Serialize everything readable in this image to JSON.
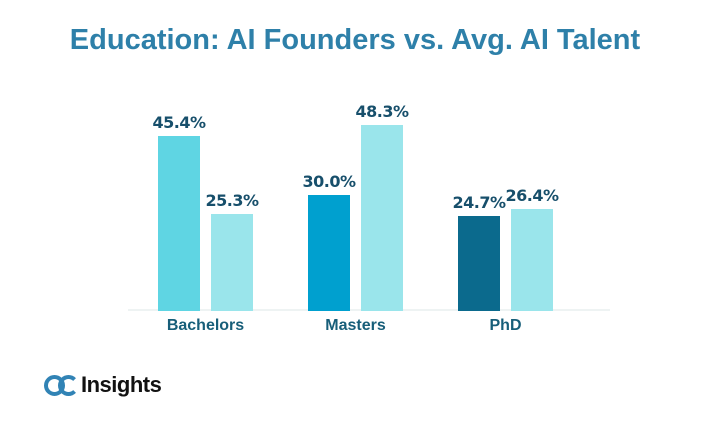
{
  "logo": {
    "mark": "OC",
    "text": "Insights"
  },
  "colors": {
    "title": "#2E80A9",
    "value_label": "#174F6B",
    "category_label": "#175E79",
    "axis_line": "#EEF3F3",
    "logo_blue": "#3183B5",
    "logo_text": "#121212"
  },
  "chart_data": {
    "type": "bar",
    "title": "Education: AI Founders vs. Avg. AI Talent",
    "categories": [
      "Bachelors",
      "Masters",
      "PhD"
    ],
    "series": [
      {
        "name": "AI Founders",
        "values": [
          45.4,
          30.0,
          24.7
        ],
        "colors": [
          "#5FD5E3",
          "#00A0CF",
          "#0B6A8D"
        ]
      },
      {
        "name": "Avg. AI Talent",
        "values": [
          25.3,
          48.3,
          26.4
        ],
        "colors": [
          "#9AE5EB",
          "#9AE5EB",
          "#9AE5EB"
        ]
      }
    ],
    "value_labels": [
      [
        "45.4%",
        "30.0%",
        "24.7%"
      ],
      [
        "25.3%",
        "48.3%",
        "26.4%"
      ]
    ],
    "ylim": [
      0,
      50
    ],
    "grid": false,
    "legend": "none",
    "value_label_position": "above-bar"
  }
}
